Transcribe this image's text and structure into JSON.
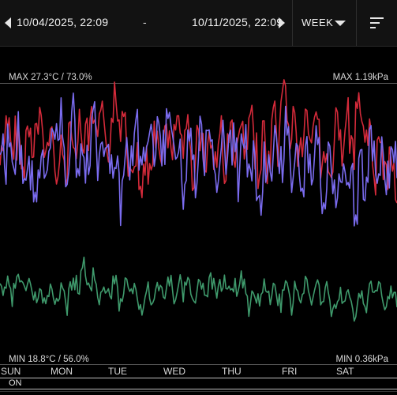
{
  "header": {
    "start_date": "10/04/2025, 22:09",
    "separator": "-",
    "end_date": "10/11/2025, 22:09",
    "period": "WEEK"
  },
  "chart": {
    "max_temp_humidity": "MAX 27.3°C / 73.0%",
    "max_pressure": "MAX 1.19kPa",
    "min_temp_humidity": "MIN 18.8°C / 56.0%",
    "min_pressure": "MIN 0.36kPa",
    "days": [
      "SUN",
      "MON",
      "TUE",
      "WED",
      "THU",
      "FRI",
      "SAT"
    ],
    "status": "ON",
    "colors": {
      "temperature": "#d42a3a",
      "humidity": "#7b6cf0",
      "pressure": "#3f9a6c"
    }
  }
}
